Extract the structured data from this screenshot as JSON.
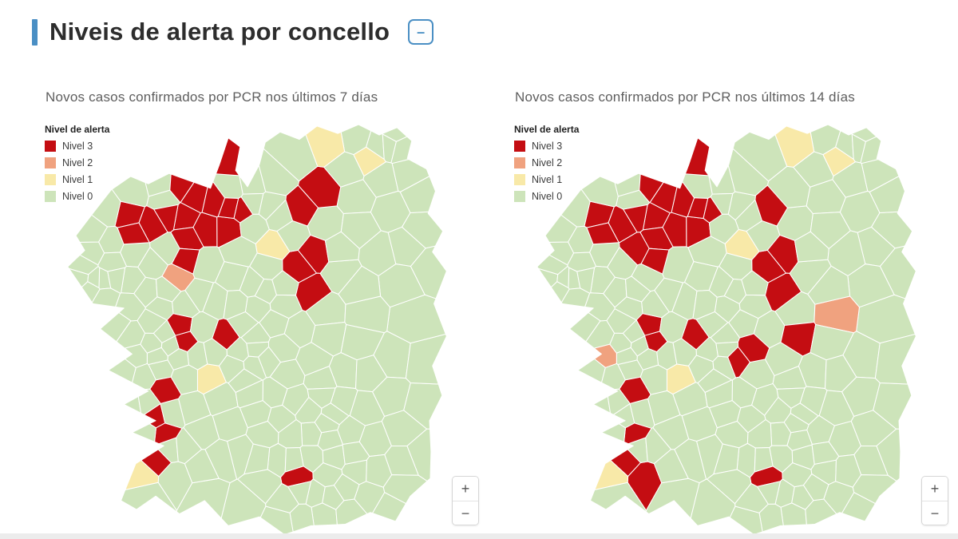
{
  "page": {
    "title": "Niveis de alerta por concello",
    "collapse_glyph": "–",
    "accent_color": "#4a8fc4"
  },
  "legend": {
    "title": "Nivel de alerta",
    "items": [
      {
        "label": "Nivel 3",
        "level": 3,
        "color": "#c40d12"
      },
      {
        "label": "Nivel 2",
        "level": 2,
        "color": "#f0a27f"
      },
      {
        "label": "Nivel 1",
        "level": 1,
        "color": "#f8e9a8"
      },
      {
        "label": "Nivel 0",
        "level": 0,
        "color": "#cde4ba"
      }
    ]
  },
  "maps": [
    {
      "subtitle": "Novos casos confirmados por PCR nos últimos 7 días",
      "zoom_in": "+",
      "zoom_out": "−"
    },
    {
      "subtitle": "Novos casos confirmados por PCR nos últimos 14 días",
      "zoom_in": "+",
      "zoom_out": "−"
    }
  ],
  "map_style": {
    "border_color": "#ffffff",
    "default_level": 0
  },
  "chart_data": [
    {
      "type": "choropleth",
      "title": "Novos casos confirmados por PCR nos últimos 7 días",
      "region": "Galicia (concellos)",
      "legend_title": "Nivel de alerta",
      "categories": [
        "Nivel 3",
        "Nivel 2",
        "Nivel 1",
        "Nivel 0"
      ],
      "category_colors": [
        "#c40d12",
        "#f0a27f",
        "#f8e9a8",
        "#cde4ba"
      ],
      "legend_position": "top-left",
      "controls": [
        "zoom-in",
        "zoom-out"
      ]
    },
    {
      "type": "choropleth",
      "title": "Novos casos confirmados por PCR nos últimos 14 días",
      "region": "Galicia (concellos)",
      "legend_title": "Nivel de alerta",
      "categories": [
        "Nivel 3",
        "Nivel 2",
        "Nivel 1",
        "Nivel 0"
      ],
      "category_colors": [
        "#c40d12",
        "#f0a27f",
        "#f8e9a8",
        "#cde4ba"
      ],
      "legend_position": "top-left",
      "controls": [
        "zoom-in",
        "zoom-out"
      ]
    }
  ]
}
